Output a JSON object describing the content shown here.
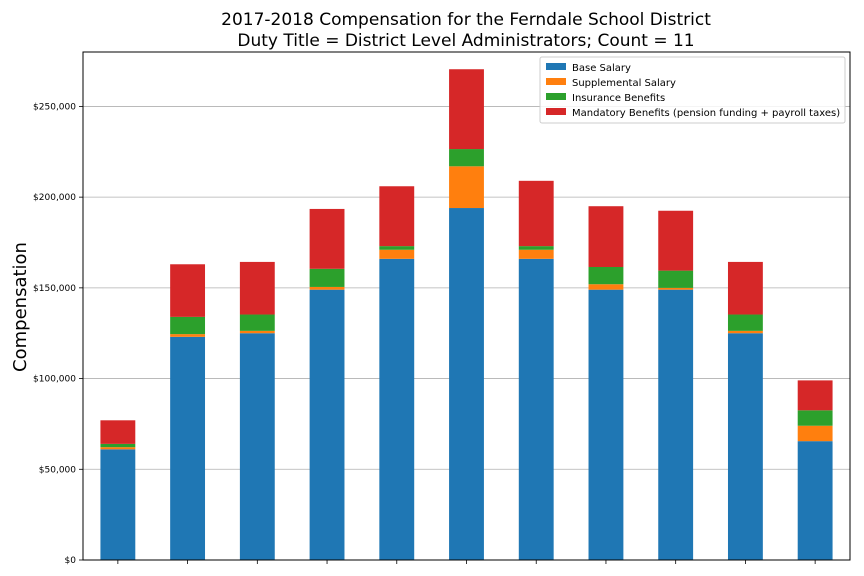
{
  "chart_data": {
    "type": "bar",
    "stacked": true,
    "title": "2017-2018 Compensation for the Ferndale School District",
    "subtitle": "Duty Title = District Level Administrators; Count = 11",
    "xlabel": "",
    "ylabel": "Compensation",
    "ylim": [
      0,
      280000
    ],
    "yticks": [
      0,
      50000,
      100000,
      150000,
      200000,
      250000
    ],
    "ytick_labels": [
      "$0",
      "$50,000",
      "$100,000",
      "$150,000",
      "$200,000",
      "$250,000"
    ],
    "grid": "horizontal",
    "legend_position": "top-right",
    "categories": [
      "",
      "",
      "",
      "",
      "",
      "",
      "",
      "",
      "",
      "",
      ""
    ],
    "series": [
      {
        "name": "Base Salary",
        "color": "#1f77b4",
        "values": [
          61000,
          123000,
          125000,
          149000,
          166000,
          194000,
          166000,
          149000,
          149000,
          125000,
          65500
        ]
      },
      {
        "name": "Supplemental Salary",
        "color": "#ff7f0e",
        "values": [
          1200,
          1500,
          1300,
          1500,
          5000,
          23000,
          5000,
          3000,
          1000,
          1300,
          8500
        ]
      },
      {
        "name": "Insurance Benefits",
        "color": "#2ca02c",
        "values": [
          1800,
          9500,
          9000,
          10000,
          2000,
          9500,
          2000,
          9500,
          9500,
          9000,
          8500
        ]
      },
      {
        "name": "Mandatory Benefits (pension funding + payroll taxes)",
        "color": "#d62728",
        "values": [
          13000,
          29000,
          29000,
          33000,
          33000,
          44000,
          36000,
          33500,
          33000,
          29000,
          16500
        ]
      }
    ]
  }
}
